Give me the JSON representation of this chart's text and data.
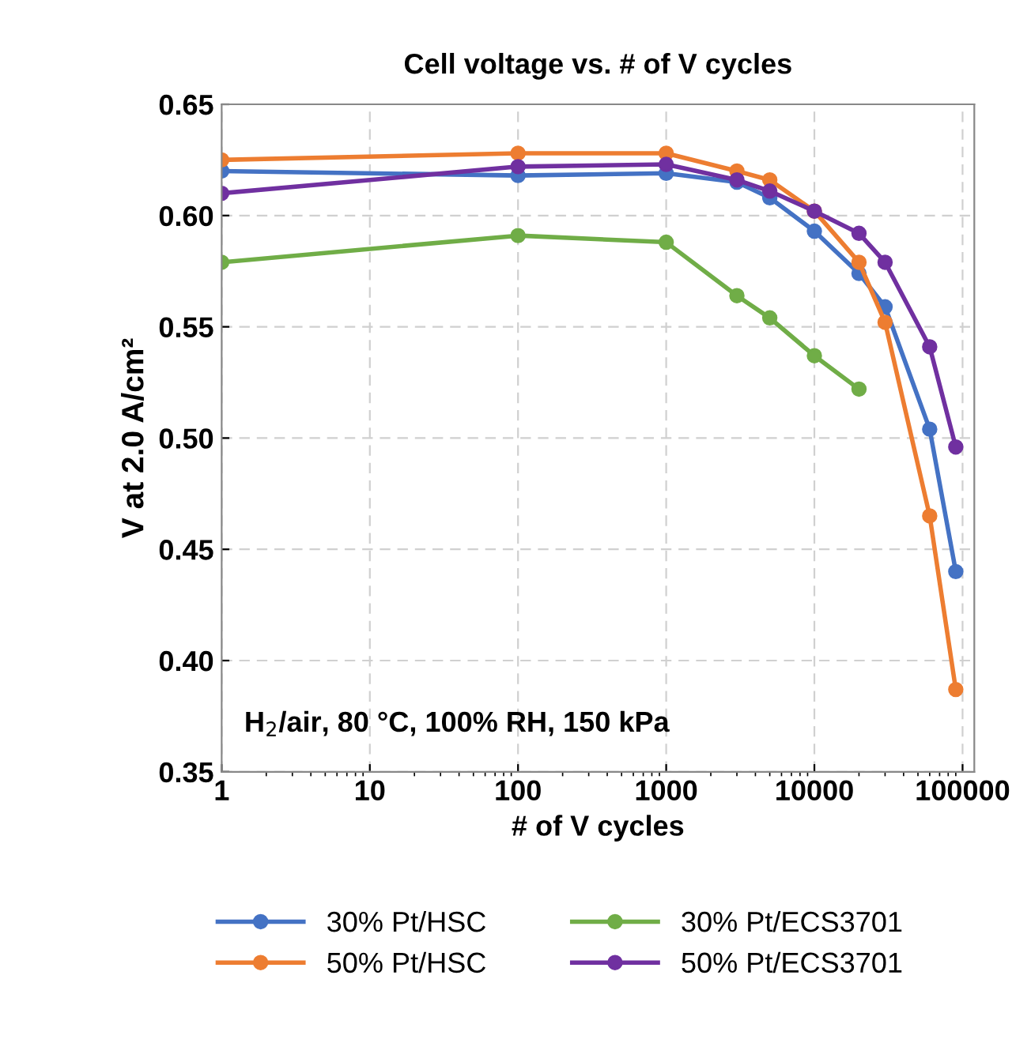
{
  "chart_data": {
    "type": "line",
    "title": "Cell voltage vs. # of V cycles",
    "xlabel": "# of V cycles",
    "ylabel": "V at 2.0 A/cm²",
    "log": "x",
    "grid": true,
    "legend": "bottom",
    "marker": "circle",
    "line_style": "solid",
    "xlim": [
      1,
      120000
    ],
    "xticks": [
      1,
      10,
      100,
      1000,
      10000,
      100000
    ],
    "ylim": [
      0.35,
      0.65
    ],
    "yticks": [
      {
        "value": 0.35,
        "label": "0.35"
      },
      {
        "value": 0.4,
        "label": "0.40"
      },
      {
        "value": 0.45,
        "label": "0.45"
      },
      {
        "value": 0.5,
        "label": "0.50"
      },
      {
        "value": 0.55,
        "label": "0.55"
      },
      {
        "value": 0.6,
        "label": "0.60"
      },
      {
        "value": 0.65,
        "label": "0.65"
      }
    ],
    "annotations": [
      "H$_{2}$/air, 80 °C, 100% RH, 150 kPa"
    ],
    "series": [
      {
        "name": "30% Pt/HSC",
        "color": "#4472c4",
        "x": [
          1,
          100,
          1000,
          3000,
          5000,
          10000,
          20000,
          30000,
          60000,
          90000
        ],
        "values": [
          0.62,
          0.618,
          0.619,
          0.615,
          0.608,
          0.593,
          0.574,
          0.559,
          0.504,
          0.44
        ]
      },
      {
        "name": "50% Pt/HSC",
        "color": "#ed7d31",
        "x": [
          1,
          100,
          1000,
          3000,
          5000,
          10000,
          20000,
          30000,
          60000,
          90000
        ],
        "values": [
          0.625,
          0.628,
          0.628,
          0.62,
          0.616,
          0.602,
          0.579,
          0.552,
          0.465,
          0.387
        ]
      },
      {
        "name": "30% Pt/ECS3701",
        "color": "#70ad47",
        "x": [
          1,
          100,
          1000,
          3000,
          5000,
          10000,
          20000
        ],
        "values": [
          0.579,
          0.591,
          0.588,
          0.564,
          0.554,
          0.537,
          0.522
        ]
      },
      {
        "name": "50% Pt/ECS3701",
        "color": "#7030a0",
        "x": [
          1,
          100,
          1000,
          3000,
          5000,
          10000,
          20000,
          30000,
          60000,
          90000
        ],
        "values": [
          0.61,
          0.622,
          0.623,
          0.616,
          0.611,
          0.602,
          0.592,
          0.579,
          0.541,
          0.496
        ]
      }
    ]
  }
}
